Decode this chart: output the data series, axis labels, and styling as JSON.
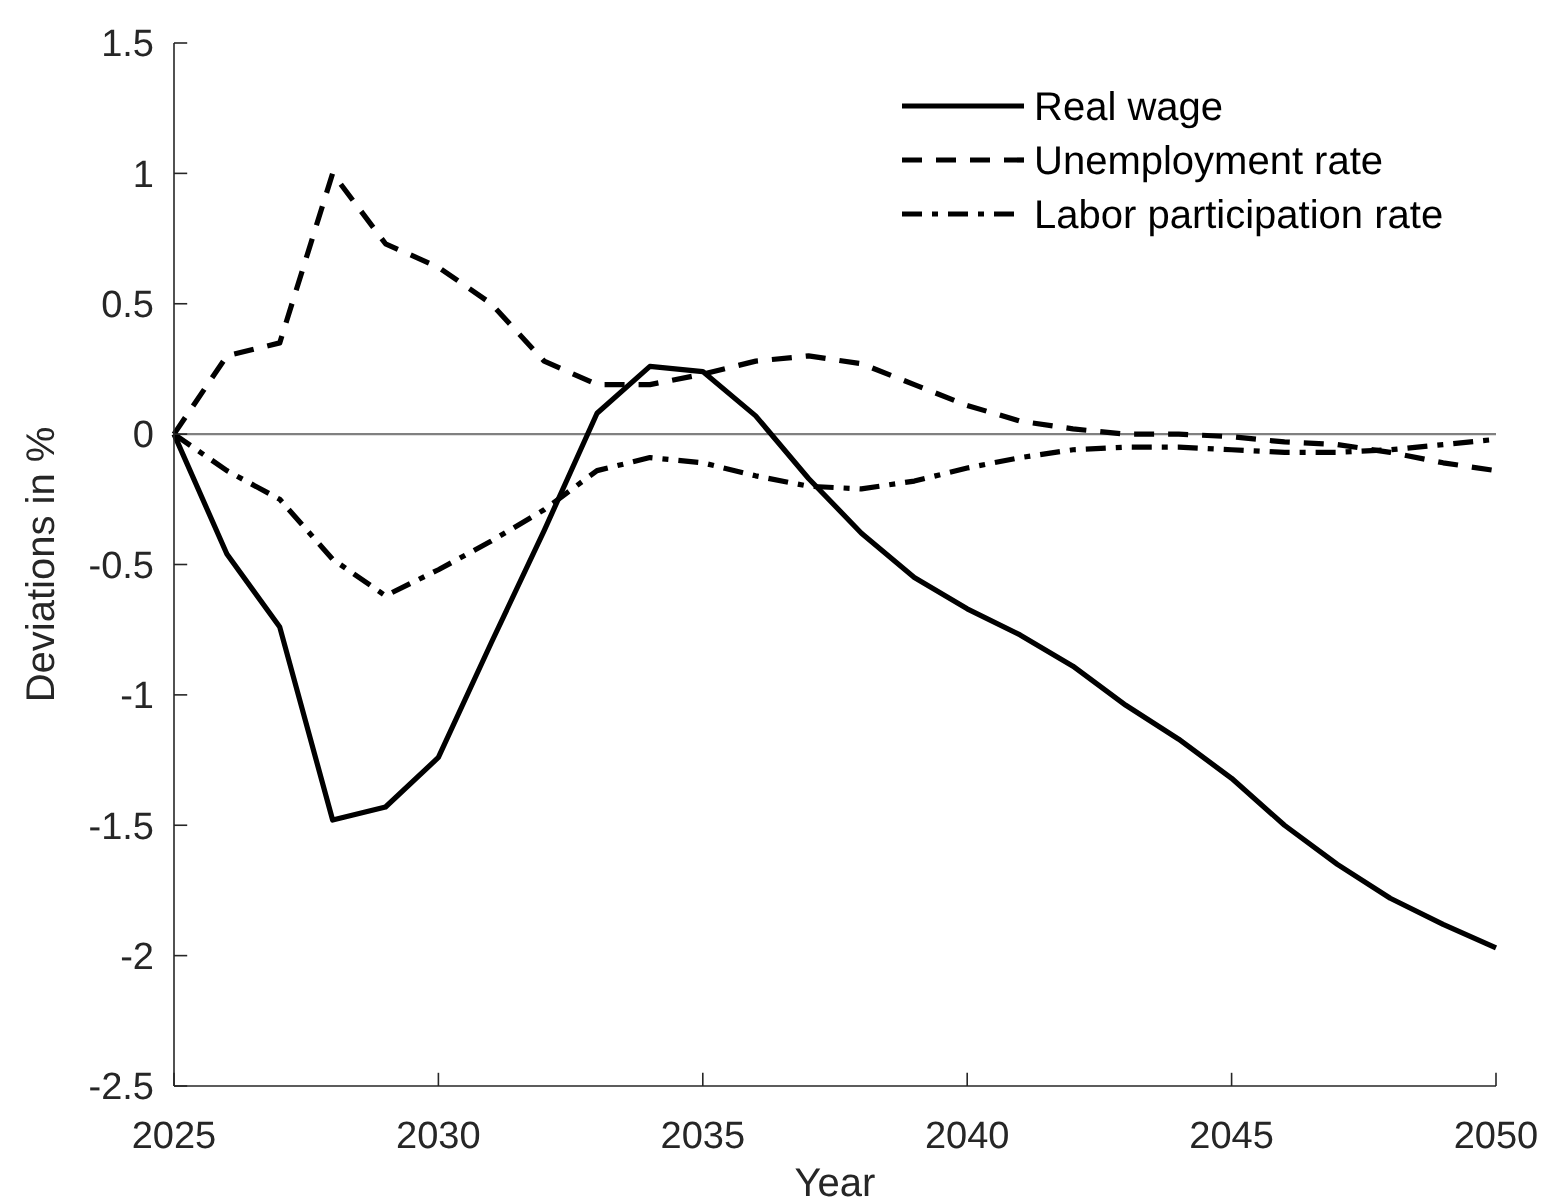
{
  "chart_data": {
    "type": "line",
    "xlabel": "Year",
    "ylabel": "Deviations in %",
    "x": [
      2025,
      2026,
      2027,
      2028,
      2029,
      2030,
      2031,
      2032,
      2033,
      2034,
      2035,
      2036,
      2037,
      2038,
      2039,
      2040,
      2041,
      2042,
      2043,
      2044,
      2045,
      2046,
      2047,
      2048,
      2049,
      2050
    ],
    "series": [
      {
        "name": "Real wage",
        "color": "#000000",
        "line_style": "solid",
        "values": [
          0,
          -0.46,
          -0.74,
          -1.48,
          -1.43,
          -1.24,
          -0.8,
          -0.37,
          0.08,
          0.26,
          0.24,
          0.07,
          -0.17,
          -0.38,
          -0.55,
          -0.67,
          -0.77,
          -0.89,
          -1.04,
          -1.17,
          -1.32,
          -1.5,
          -1.65,
          -1.78,
          -1.88,
          -1.97
        ]
      },
      {
        "name": "Unemployment rate",
        "color": "#000000",
        "line_style": "dashed",
        "values": [
          0,
          0.3,
          0.35,
          1.0,
          0.73,
          0.64,
          0.5,
          0.28,
          0.19,
          0.19,
          0.23,
          0.28,
          0.3,
          0.27,
          0.19,
          0.11,
          0.05,
          0.02,
          0.0,
          0.0,
          -0.01,
          -0.03,
          -0.04,
          -0.07,
          -0.11,
          -0.14
        ]
      },
      {
        "name": "Labor participation rate",
        "color": "#000000",
        "line_style": "dashdot",
        "values": [
          0,
          -0.14,
          -0.25,
          -0.48,
          -0.62,
          -0.52,
          -0.41,
          -0.29,
          -0.14,
          -0.09,
          -0.11,
          -0.16,
          -0.2,
          -0.21,
          -0.18,
          -0.13,
          -0.09,
          -0.06,
          -0.05,
          -0.05,
          -0.06,
          -0.07,
          -0.07,
          -0.06,
          -0.04,
          -0.02
        ]
      }
    ],
    "xlim": [
      2025,
      2050
    ],
    "xticks": [
      2025,
      2030,
      2035,
      2040,
      2045,
      2050
    ],
    "ylim": [
      -2.5,
      1.5
    ],
    "yticks": [
      -2.5,
      -2,
      -1.5,
      -1,
      -0.5,
      0,
      0.5,
      1,
      1.5
    ],
    "ref_lines": [
      {
        "axis": "y",
        "value": 0,
        "color": "#808080"
      }
    ],
    "legend": "top right"
  }
}
